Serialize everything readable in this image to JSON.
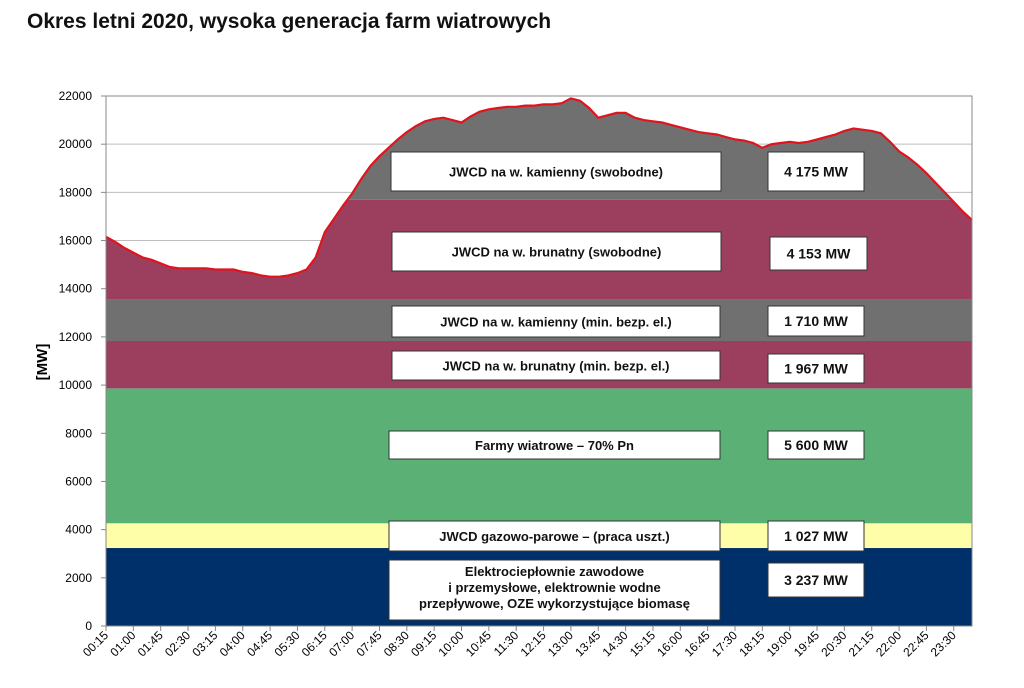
{
  "title": "Okres letni 2020, wysoka generacja farm wiatrowych",
  "chart_data": {
    "type": "area",
    "title": "Okres letni 2020, wysoka generacja farm wiatrowych",
    "ylabel": "[MW]",
    "xlabel": "",
    "ylim": [
      0,
      22000
    ],
    "yticks": [
      0,
      2000,
      4000,
      6000,
      8000,
      10000,
      12000,
      14000,
      16000,
      18000,
      20000,
      22000
    ],
    "grid": true,
    "x_tick_labels": [
      "00:15",
      "01:00",
      "01:45",
      "02:30",
      "03:15",
      "04:00",
      "04:45",
      "05:30",
      "06:15",
      "07:00",
      "07:45",
      "08:30",
      "09:15",
      "10:00",
      "10:45",
      "11:30",
      "12:15",
      "13:00",
      "13:45",
      "14:30",
      "15:15",
      "16:00",
      "16:45",
      "17:30",
      "18:15",
      "19:00",
      "19:45",
      "20:30",
      "21:15",
      "22:00",
      "22:45",
      "23:30"
    ],
    "demand_curve": {
      "x": [
        "00:15",
        "00:30",
        "00:45",
        "01:00",
        "01:15",
        "01:30",
        "01:45",
        "02:00",
        "02:15",
        "02:30",
        "02:45",
        "03:00",
        "03:15",
        "03:30",
        "03:45",
        "04:00",
        "04:15",
        "04:30",
        "04:45",
        "05:00",
        "05:15",
        "05:30",
        "05:45",
        "06:00",
        "06:15",
        "06:30",
        "06:45",
        "07:00",
        "07:15",
        "07:30",
        "07:45",
        "08:00",
        "08:15",
        "08:30",
        "08:45",
        "09:00",
        "09:15",
        "09:30",
        "09:45",
        "10:00",
        "10:15",
        "10:30",
        "10:45",
        "11:00",
        "11:15",
        "11:30",
        "11:45",
        "12:00",
        "12:15",
        "12:30",
        "12:45",
        "13:00",
        "13:15",
        "13:30",
        "13:45",
        "14:00",
        "14:15",
        "14:30",
        "14:45",
        "15:00",
        "15:15",
        "15:30",
        "15:45",
        "16:00",
        "16:15",
        "16:30",
        "16:45",
        "17:00",
        "17:15",
        "17:30",
        "17:45",
        "18:00",
        "18:15",
        "18:30",
        "18:45",
        "19:00",
        "19:15",
        "19:30",
        "19:45",
        "20:00",
        "20:15",
        "20:30",
        "20:45",
        "21:00",
        "21:15",
        "21:30",
        "21:45",
        "22:00",
        "22:15",
        "22:30",
        "22:45",
        "23:00",
        "23:15",
        "23:30",
        "23:45",
        "24:00"
      ],
      "y": [
        16150,
        15950,
        15700,
        15500,
        15300,
        15200,
        15050,
        14900,
        14850,
        14850,
        14850,
        14850,
        14800,
        14800,
        14800,
        14700,
        14650,
        14550,
        14500,
        14500,
        14550,
        14650,
        14800,
        15300,
        16350,
        16900,
        17450,
        17950,
        18550,
        19100,
        19500,
        19850,
        20200,
        20500,
        20750,
        20950,
        21050,
        21100,
        21000,
        20900,
        21150,
        21350,
        21450,
        21500,
        21550,
        21550,
        21600,
        21600,
        21650,
        21650,
        21700,
        21900,
        21800,
        21500,
        21100,
        21200,
        21300,
        21300,
        21100,
        21000,
        20950,
        20900,
        20800,
        20700,
        20600,
        20500,
        20450,
        20400,
        20300,
        20200,
        20150,
        20050,
        19850,
        20000,
        20050,
        20100,
        20050,
        20100,
        20200,
        20300,
        20400,
        20550,
        20650,
        20600,
        20550,
        20450,
        20100,
        19700,
        19450,
        19150,
        18800,
        18400,
        18000,
        17600,
        17200,
        16850
      ]
    },
    "series": [
      {
        "name": "Elektrociepłownie zawodowe i przemysłowe, elektrownie wodne przepływowe, OZE wykorzystujące biomasę",
        "value_label": "3 237 MW",
        "band": [
          0,
          3237
        ],
        "color": "#00306a"
      },
      {
        "name": "JWCD gazowo-parowe – (praca uszt.)",
        "value_label": "1 027 MW",
        "band": [
          3237,
          4264
        ],
        "color": "#fefea8"
      },
      {
        "name": "Farmy wiatrowe – 70% Pn",
        "value_label": "5 600 MW",
        "band": [
          4264,
          9864
        ],
        "color": "#5ab075"
      },
      {
        "name": "JWCD na w. brunatny (min. bezp. el.)",
        "value_label": "1 967 MW",
        "band": [
          9864,
          11831
        ],
        "color": "#9c3f5e"
      },
      {
        "name": "JWCD na w. kamienny (min. bezp. el.)",
        "value_label": "1 710 MW",
        "band": [
          11831,
          13541
        ],
        "color": "#707070"
      },
      {
        "name": "JWCD na w. brunatny (swobodne)",
        "value_label": "4 153 MW",
        "band": [
          13541,
          17694
        ],
        "color": "#9c3f5e"
      },
      {
        "name": "JWCD na w. kamienny (swobodne)",
        "value_label": "4 175 MW",
        "band": [
          17694,
          21869
        ],
        "color": "#707070"
      }
    ],
    "demand_line_color": "#e0141e"
  }
}
